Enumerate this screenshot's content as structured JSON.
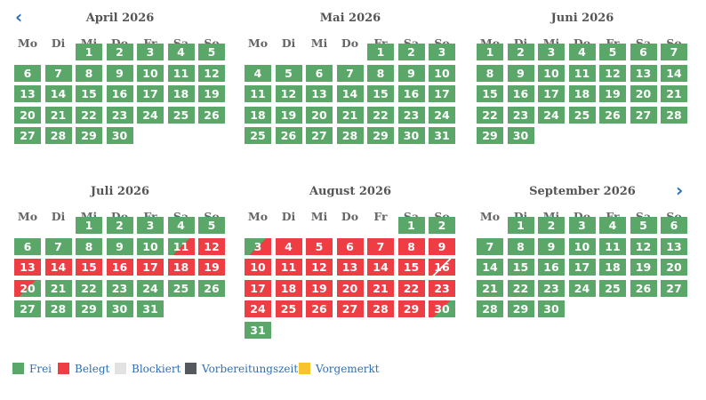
{
  "nav": {
    "prev_icon": "‹",
    "next_icon": "›"
  },
  "colors": {
    "frei": "#5aa769",
    "belegt": "#ee3d43",
    "blockiert": "#e2e2e2",
    "vorbereitungszeit": "#55585c",
    "vorgemerkt": "#f7c52b"
  },
  "weekdays": [
    "Mo",
    "Di",
    "Mi",
    "Do",
    "Fr",
    "Sa",
    "So"
  ],
  "months": [
    {
      "title": "April 2026",
      "first_weekday": 2,
      "days": 30,
      "states": {}
    },
    {
      "title": "Mai 2026",
      "first_weekday": 4,
      "days": 31,
      "states": {}
    },
    {
      "title": "Juni 2026",
      "first_weekday": 0,
      "days": 30,
      "states": {}
    },
    {
      "title": "Juli 2026",
      "first_weekday": 2,
      "days": 31,
      "states": {
        "11": "checkin",
        "12": "belegt",
        "13": "belegt",
        "14": "belegt",
        "15": "belegt",
        "16": "belegt",
        "17": "belegt",
        "18": "belegt",
        "19": "belegt",
        "20": "checkout"
      }
    },
    {
      "title": "August 2026",
      "first_weekday": 5,
      "days": 31,
      "states": {
        "3": "checkin",
        "4": "belegt",
        "5": "belegt",
        "6": "belegt",
        "7": "belegt",
        "8": "belegt",
        "9": "belegt",
        "10": "belegt",
        "11": "belegt",
        "12": "belegt",
        "13": "belegt",
        "14": "belegt",
        "15": "belegt",
        "16": "changeover",
        "17": "belegt",
        "18": "belegt",
        "19": "belegt",
        "20": "belegt",
        "21": "belegt",
        "22": "belegt",
        "23": "belegt",
        "24": "belegt",
        "25": "belegt",
        "26": "belegt",
        "27": "belegt",
        "28": "belegt",
        "29": "belegt",
        "30": "checkout"
      }
    },
    {
      "title": "September 2026",
      "first_weekday": 1,
      "days": 30,
      "states": {}
    }
  ],
  "legend": [
    {
      "label": "Frei",
      "color": "#5aa769"
    },
    {
      "label": "Belegt",
      "color": "#ee3d43"
    },
    {
      "label": "Blockiert",
      "color": "#e2e2e2"
    },
    {
      "label": "Vorbereitungszeit",
      "color": "#55585c"
    },
    {
      "label": "Vorgemerkt",
      "color": "#f7c52b"
    }
  ]
}
